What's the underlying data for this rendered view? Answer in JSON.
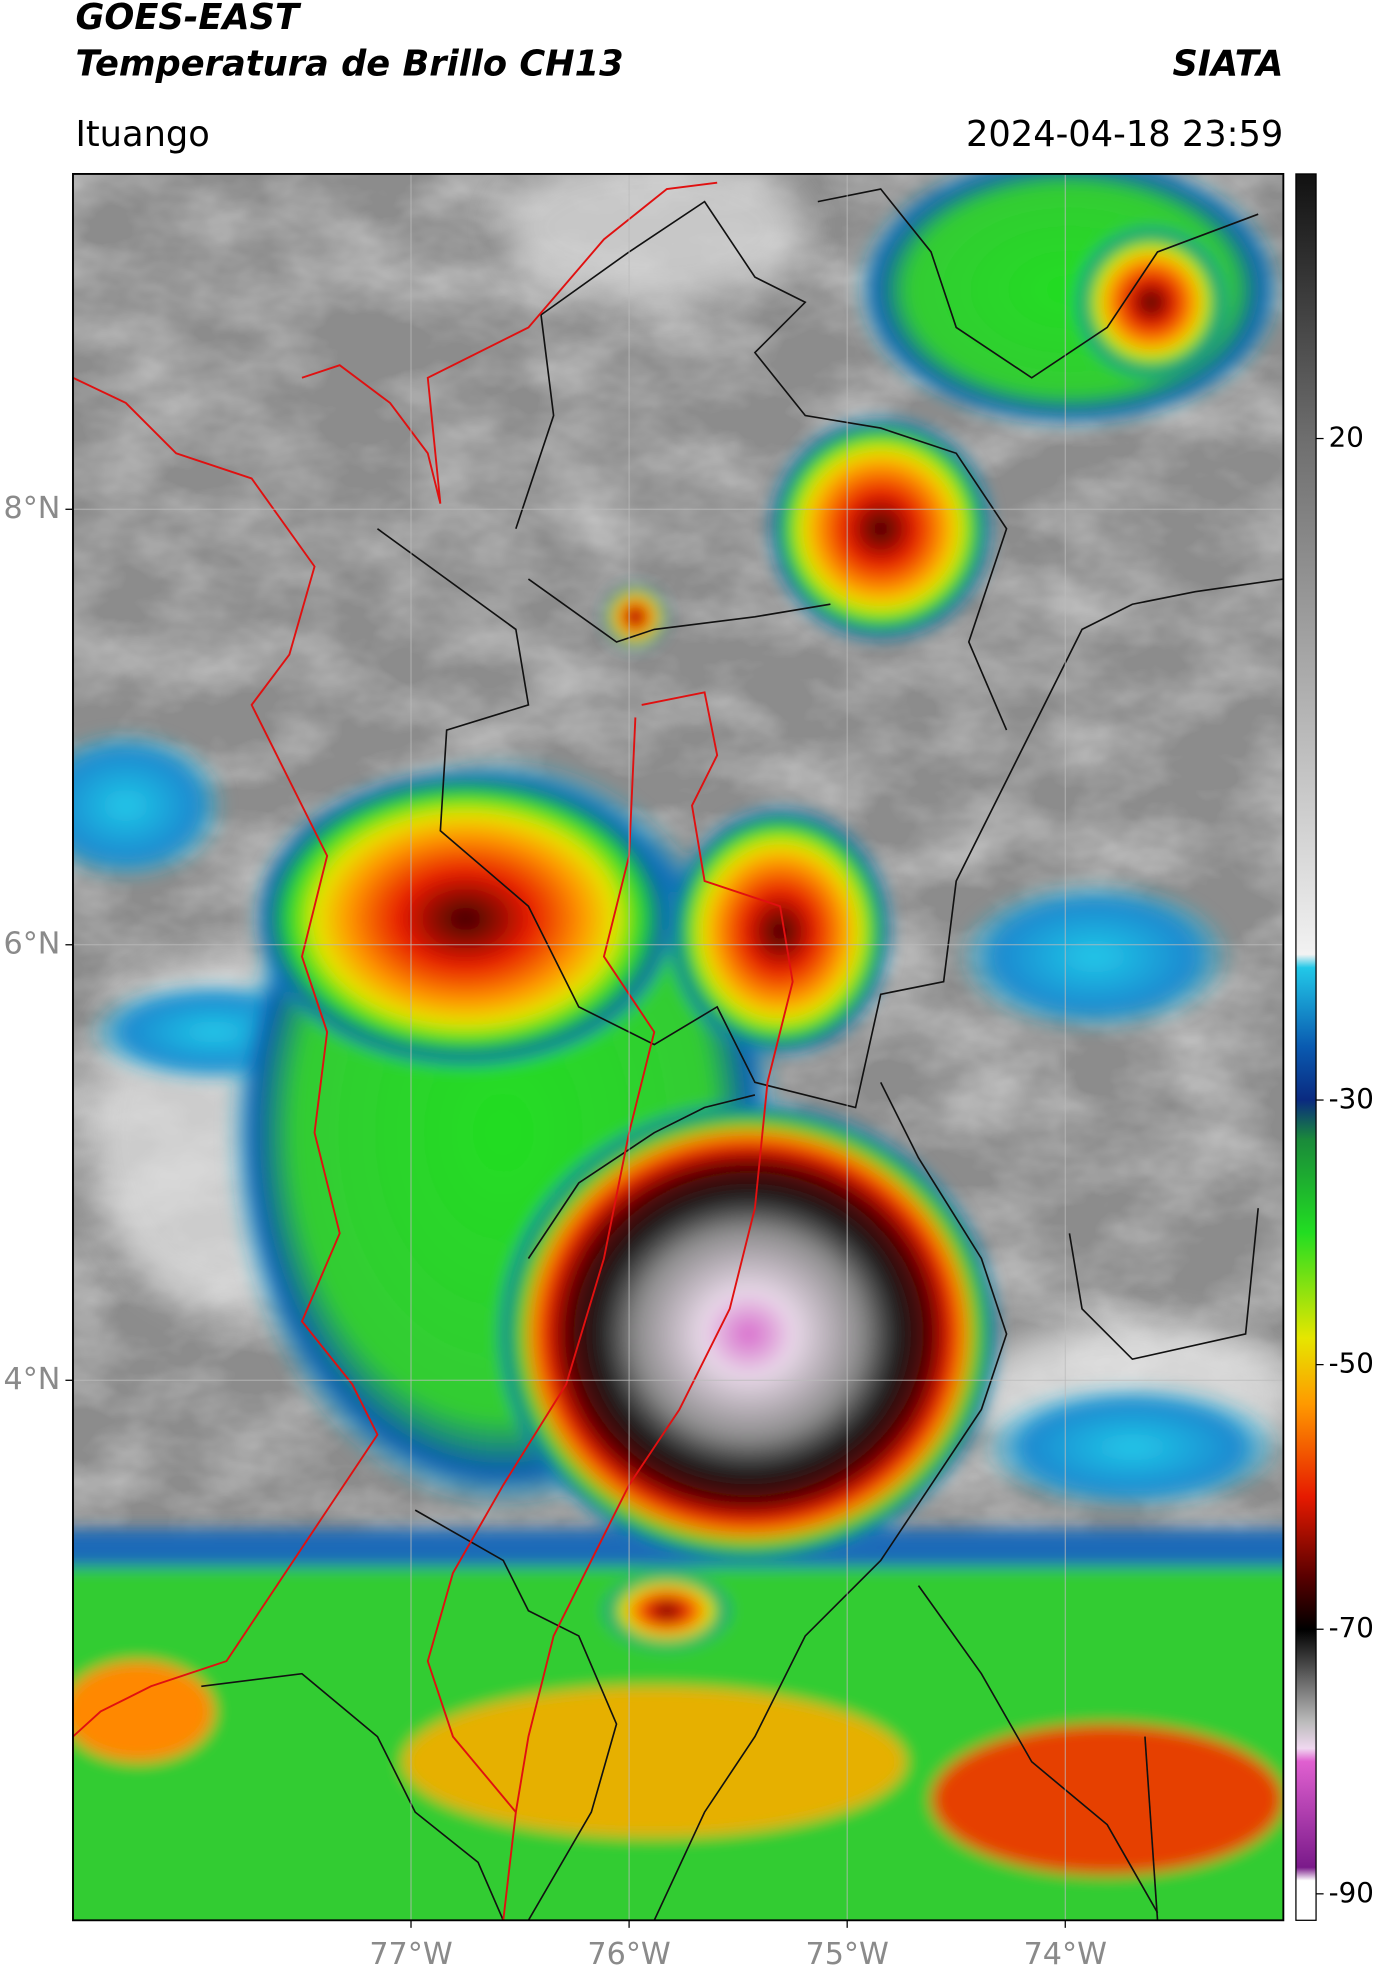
{
  "chart_data": {
    "type": "map",
    "title": "GOES-EAST",
    "subtitle": "Temperatura de Brillo CH13",
    "source": "SIATA",
    "location": "Ituango",
    "datetime": "2024-04-18 23:59",
    "xlim": [
      -78.55,
      -73.0
    ],
    "ylim": [
      1.52,
      9.54
    ],
    "xticks": [
      {
        "value": -77,
        "label": "77°W"
      },
      {
        "value": -76,
        "label": "76°W"
      },
      {
        "value": -75,
        "label": "75°W"
      },
      {
        "value": -74,
        "label": "74°W"
      }
    ],
    "yticks": [
      {
        "value": 8,
        "label": "8°N"
      },
      {
        "value": 6,
        "label": "6°N"
      },
      {
        "value": 4,
        "label": "4°N"
      }
    ],
    "grid": true,
    "colorbar": {
      "lim": [
        40,
        -92
      ],
      "ticks": [
        20,
        -30,
        -50,
        -70,
        -90
      ],
      "colormap": [
        {
          "value": 40,
          "color": "#111111"
        },
        {
          "value": 20,
          "color": "#6e6e6e"
        },
        {
          "value": -19,
          "color": "#f2f2f2"
        },
        {
          "value": -20,
          "color": "#22c8e8"
        },
        {
          "value": -26,
          "color": "#0a5ab0"
        },
        {
          "value": -30,
          "color": "#0a2a80"
        },
        {
          "value": -33,
          "color": "#1a8a3a"
        },
        {
          "value": -40,
          "color": "#22dd22"
        },
        {
          "value": -48,
          "color": "#e6e600"
        },
        {
          "value": -53,
          "color": "#ff9900"
        },
        {
          "value": -60,
          "color": "#e61a00"
        },
        {
          "value": -66,
          "color": "#5a0000"
        },
        {
          "value": -70,
          "color": "#000000"
        },
        {
          "value": -77,
          "color": "#bbbbbb"
        },
        {
          "value": -79,
          "color": "#f0d8f0"
        },
        {
          "value": -80,
          "color": "#e060d0"
        },
        {
          "value": -88,
          "color": "#7a1a8a"
        },
        {
          "value": -89,
          "color": "#ffffff"
        },
        {
          "value": -92,
          "color": "#ffffff"
        }
      ]
    }
  }
}
